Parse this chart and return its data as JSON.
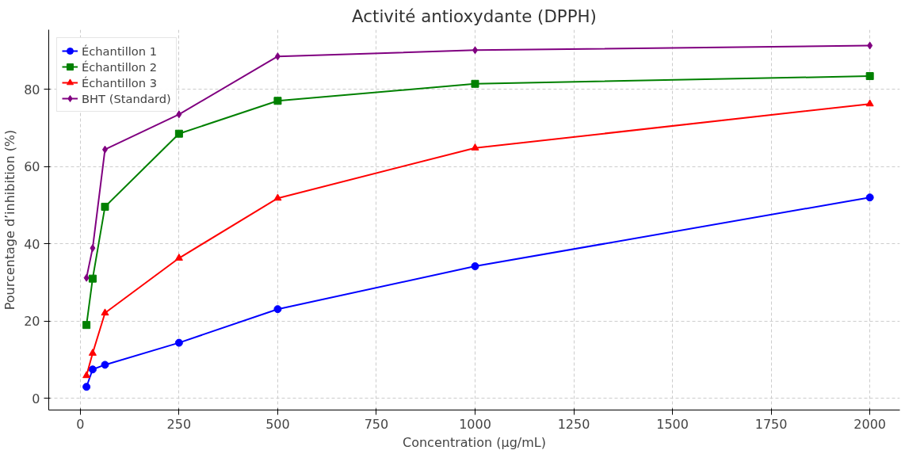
{
  "chart_data": {
    "type": "line",
    "title": "Activité antioxydante (DPPH)",
    "xlabel": "Concentration (µg/mL)",
    "ylabel": "Pourcentage d’inhibition (%)",
    "x": [
      15.625,
      31.25,
      62.5,
      250,
      500,
      1000,
      2000
    ],
    "series": [
      {
        "name": "Échantillon 1",
        "color": "#0000ff",
        "marker": "circle",
        "values": [
          3.0,
          7.5,
          8.7,
          14.4,
          23.1,
          34.2,
          52.0
        ]
      },
      {
        "name": "Échantillon 2",
        "color": "#008000",
        "marker": "square",
        "values": [
          19.0,
          31.0,
          49.6,
          68.5,
          77.0,
          81.4,
          83.4
        ]
      },
      {
        "name": "Échantillon 3",
        "color": "#ff0000",
        "marker": "triangle",
        "values": [
          5.9,
          11.7,
          22.1,
          36.3,
          51.8,
          64.8,
          76.2
        ]
      },
      {
        "name": "BHT (Standard)",
        "color": "#800080",
        "marker": "diamond",
        "values": [
          31.2,
          38.9,
          64.4,
          73.5,
          88.5,
          90.1,
          91.3
        ]
      }
    ],
    "xlim": [
      -80,
      2076
    ],
    "ylim": [
      -3,
      95.4
    ],
    "xticks": [
      0,
      250,
      500,
      750,
      1000,
      1250,
      1500,
      1750,
      2000
    ],
    "yticks": [
      0,
      20,
      40,
      60,
      80
    ],
    "grid": true,
    "legend": "top left",
    "line_style": "solid"
  }
}
